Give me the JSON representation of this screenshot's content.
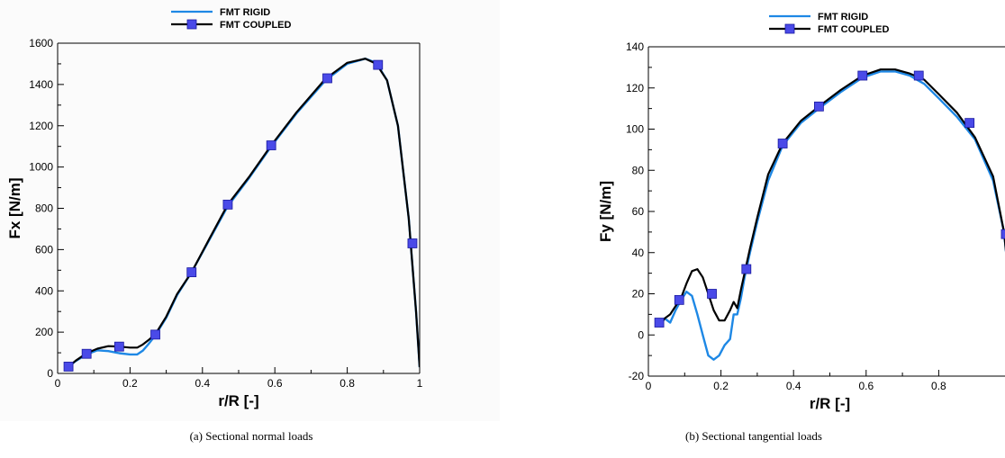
{
  "colors": {
    "rigid": "#1e88e5",
    "coupled": "#000000",
    "marker": "#4a4ae8",
    "marker_edge": "#1a1aa0"
  },
  "panels": [
    {
      "caption": "(a) Sectional normal loads"
    },
    {
      "caption": "(b) Sectional tangential loads"
    }
  ],
  "chart_data": [
    {
      "type": "line",
      "title": "",
      "xlabel": "r/R [-]",
      "ylabel": "Fx [N/m]",
      "xlim": [
        0,
        1
      ],
      "ylim": [
        0,
        1600
      ],
      "xticks": [
        0,
        0.2,
        0.4,
        0.6,
        0.8,
        1
      ],
      "xtick_labels": [
        "0",
        "0.2",
        "0.4",
        "0.6",
        "0.8",
        "1"
      ],
      "yticks": [
        0,
        200,
        400,
        600,
        800,
        1000,
        1200,
        1400,
        1600
      ],
      "ytick_labels": [
        "0",
        "200",
        "400",
        "600",
        "800",
        "1000",
        "1200",
        "1400",
        "1600"
      ],
      "legend_position": "top-center",
      "series": [
        {
          "name": "FMT RIGID",
          "marker": "none",
          "x": [
            0.03,
            0.05,
            0.08,
            0.11,
            0.14,
            0.17,
            0.2,
            0.22,
            0.235,
            0.25,
            0.27,
            0.3,
            0.33,
            0.37,
            0.42,
            0.47,
            0.53,
            0.59,
            0.66,
            0.74,
            0.8,
            0.85,
            0.88,
            0.91,
            0.94,
            0.97,
            0.99,
            1.0
          ],
          "y": [
            33,
            60,
            92,
            112,
            108,
            98,
            92,
            92,
            110,
            140,
            185,
            270,
            380,
            490,
            650,
            810,
            950,
            1100,
            1260,
            1420,
            1500,
            1525,
            1505,
            1420,
            1200,
            750,
            300,
            30
          ]
        },
        {
          "name": "FMT COUPLED",
          "marker": "square",
          "x": [
            0.03,
            0.05,
            0.08,
            0.11,
            0.14,
            0.17,
            0.2,
            0.22,
            0.235,
            0.25,
            0.27,
            0.3,
            0.33,
            0.37,
            0.42,
            0.47,
            0.53,
            0.59,
            0.66,
            0.74,
            0.8,
            0.85,
            0.88,
            0.91,
            0.94,
            0.97,
            0.99,
            1.0
          ],
          "y": [
            33,
            62,
            98,
            120,
            132,
            130,
            125,
            125,
            140,
            160,
            190,
            275,
            385,
            490,
            655,
            818,
            955,
            1105,
            1265,
            1428,
            1505,
            1525,
            1500,
            1420,
            1200,
            750,
            300,
            30
          ],
          "markers_x": [
            0.03,
            0.08,
            0.17,
            0.27,
            0.37,
            0.47,
            0.59,
            0.745,
            0.885,
            0.98
          ],
          "markers_y": [
            33,
            95,
            130,
            188,
            490,
            818,
            1105,
            1430,
            1495,
            630
          ]
        }
      ]
    },
    {
      "type": "line",
      "title": "",
      "xlabel": "r/R [-]",
      "ylabel": "Fy [N/m]",
      "xlim": [
        0,
        1
      ],
      "ylim": [
        -20,
        140
      ],
      "xticks": [
        0,
        0.2,
        0.4,
        0.6,
        0.8
      ],
      "xtick_labels": [
        "0",
        "0.2",
        "0.4",
        "0.6",
        "0.8"
      ],
      "yticks": [
        -20,
        0,
        20,
        40,
        60,
        80,
        100,
        120,
        140
      ],
      "ytick_labels": [
        "-20",
        "0",
        "20",
        "40",
        "60",
        "80",
        "100",
        "120",
        "140"
      ],
      "legend_position": "top-right",
      "series": [
        {
          "name": "FMT RIGID",
          "marker": "none",
          "x": [
            0.03,
            0.045,
            0.06,
            0.075,
            0.09,
            0.105,
            0.12,
            0.135,
            0.15,
            0.165,
            0.18,
            0.195,
            0.21,
            0.225,
            0.235,
            0.245,
            0.255,
            0.265,
            0.28,
            0.3,
            0.33,
            0.37,
            0.42,
            0.47,
            0.53,
            0.59,
            0.64,
            0.68,
            0.72,
            0.76,
            0.8,
            0.85,
            0.9,
            0.95,
            0.98,
            1.0
          ],
          "y": [
            6,
            8,
            6,
            12,
            17,
            21,
            19,
            10,
            0,
            -10,
            -12,
            -10,
            -5,
            -2,
            10,
            10,
            18,
            28,
            40,
            55,
            75,
            92,
            103,
            110,
            118,
            125,
            128,
            128,
            126,
            122,
            115,
            106,
            95,
            75,
            50,
            15
          ]
        },
        {
          "name": "FMT COUPLED",
          "marker": "square",
          "x": [
            0.03,
            0.045,
            0.06,
            0.075,
            0.09,
            0.105,
            0.12,
            0.135,
            0.15,
            0.165,
            0.18,
            0.195,
            0.21,
            0.225,
            0.235,
            0.245,
            0.255,
            0.265,
            0.28,
            0.3,
            0.33,
            0.37,
            0.42,
            0.47,
            0.53,
            0.59,
            0.64,
            0.68,
            0.72,
            0.76,
            0.8,
            0.85,
            0.9,
            0.95,
            0.98,
            1.0
          ],
          "y": [
            4,
            8,
            10,
            14,
            18,
            25,
            31,
            32,
            28,
            20,
            12,
            7,
            7,
            12,
            16,
            13,
            22,
            30,
            42,
            57,
            78,
            93,
            104,
            111,
            119,
            126,
            129,
            129,
            127,
            124,
            117,
            108,
            96,
            77,
            50,
            15
          ],
          "markers_x": [
            0.03,
            0.085,
            0.175,
            0.27,
            0.37,
            0.47,
            0.59,
            0.745,
            0.885,
            0.985
          ],
          "markers_y": [
            6,
            17,
            20,
            32,
            93,
            111,
            126,
            126,
            103,
            49
          ]
        }
      ]
    }
  ]
}
